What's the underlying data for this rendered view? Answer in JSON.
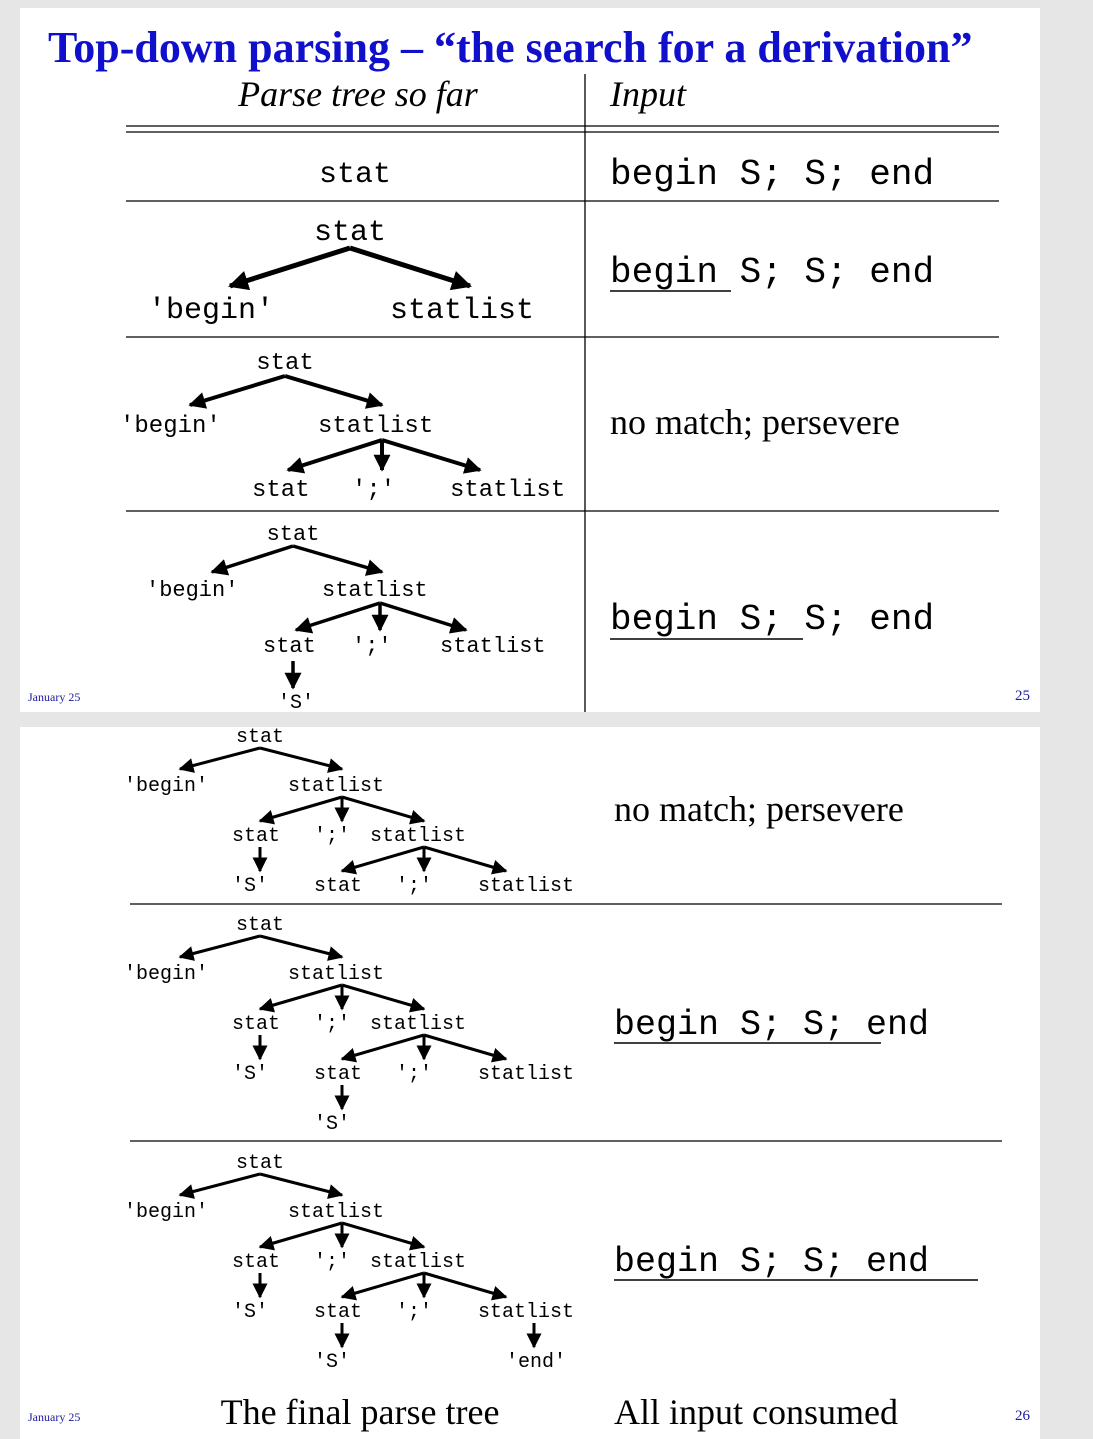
{
  "slide1": {
    "title": "Top-down parsing – “the search for a derivation”",
    "header_left": "Parse tree so far",
    "header_right": "Input",
    "footer_date": "January 25",
    "page_number": "25",
    "rows": [
      {
        "input": "begin S; S; end"
      },
      {
        "input": "begin S; S; end"
      },
      {
        "input": "no match; persevere"
      },
      {
        "input": "begin S; S; end"
      }
    ]
  },
  "slide2": {
    "footer_date": "January 25",
    "page_number": "26",
    "rows": [
      {
        "input": "no match; persevere"
      },
      {
        "input": "begin S; S; end"
      },
      {
        "input": "begin S; S; end"
      }
    ],
    "caption_left": "The final parse tree",
    "caption_right": "All input consumed"
  },
  "nodes": {
    "stat": "stat",
    "statlist": "statlist",
    "begin": "'begin'",
    "semi": "';'",
    "S": "'S'",
    "end": "'end'"
  },
  "colors": {
    "title": "#1010cc",
    "footer": "#1a1aa0",
    "ink": "#000000",
    "background": "#e6e6e6"
  }
}
